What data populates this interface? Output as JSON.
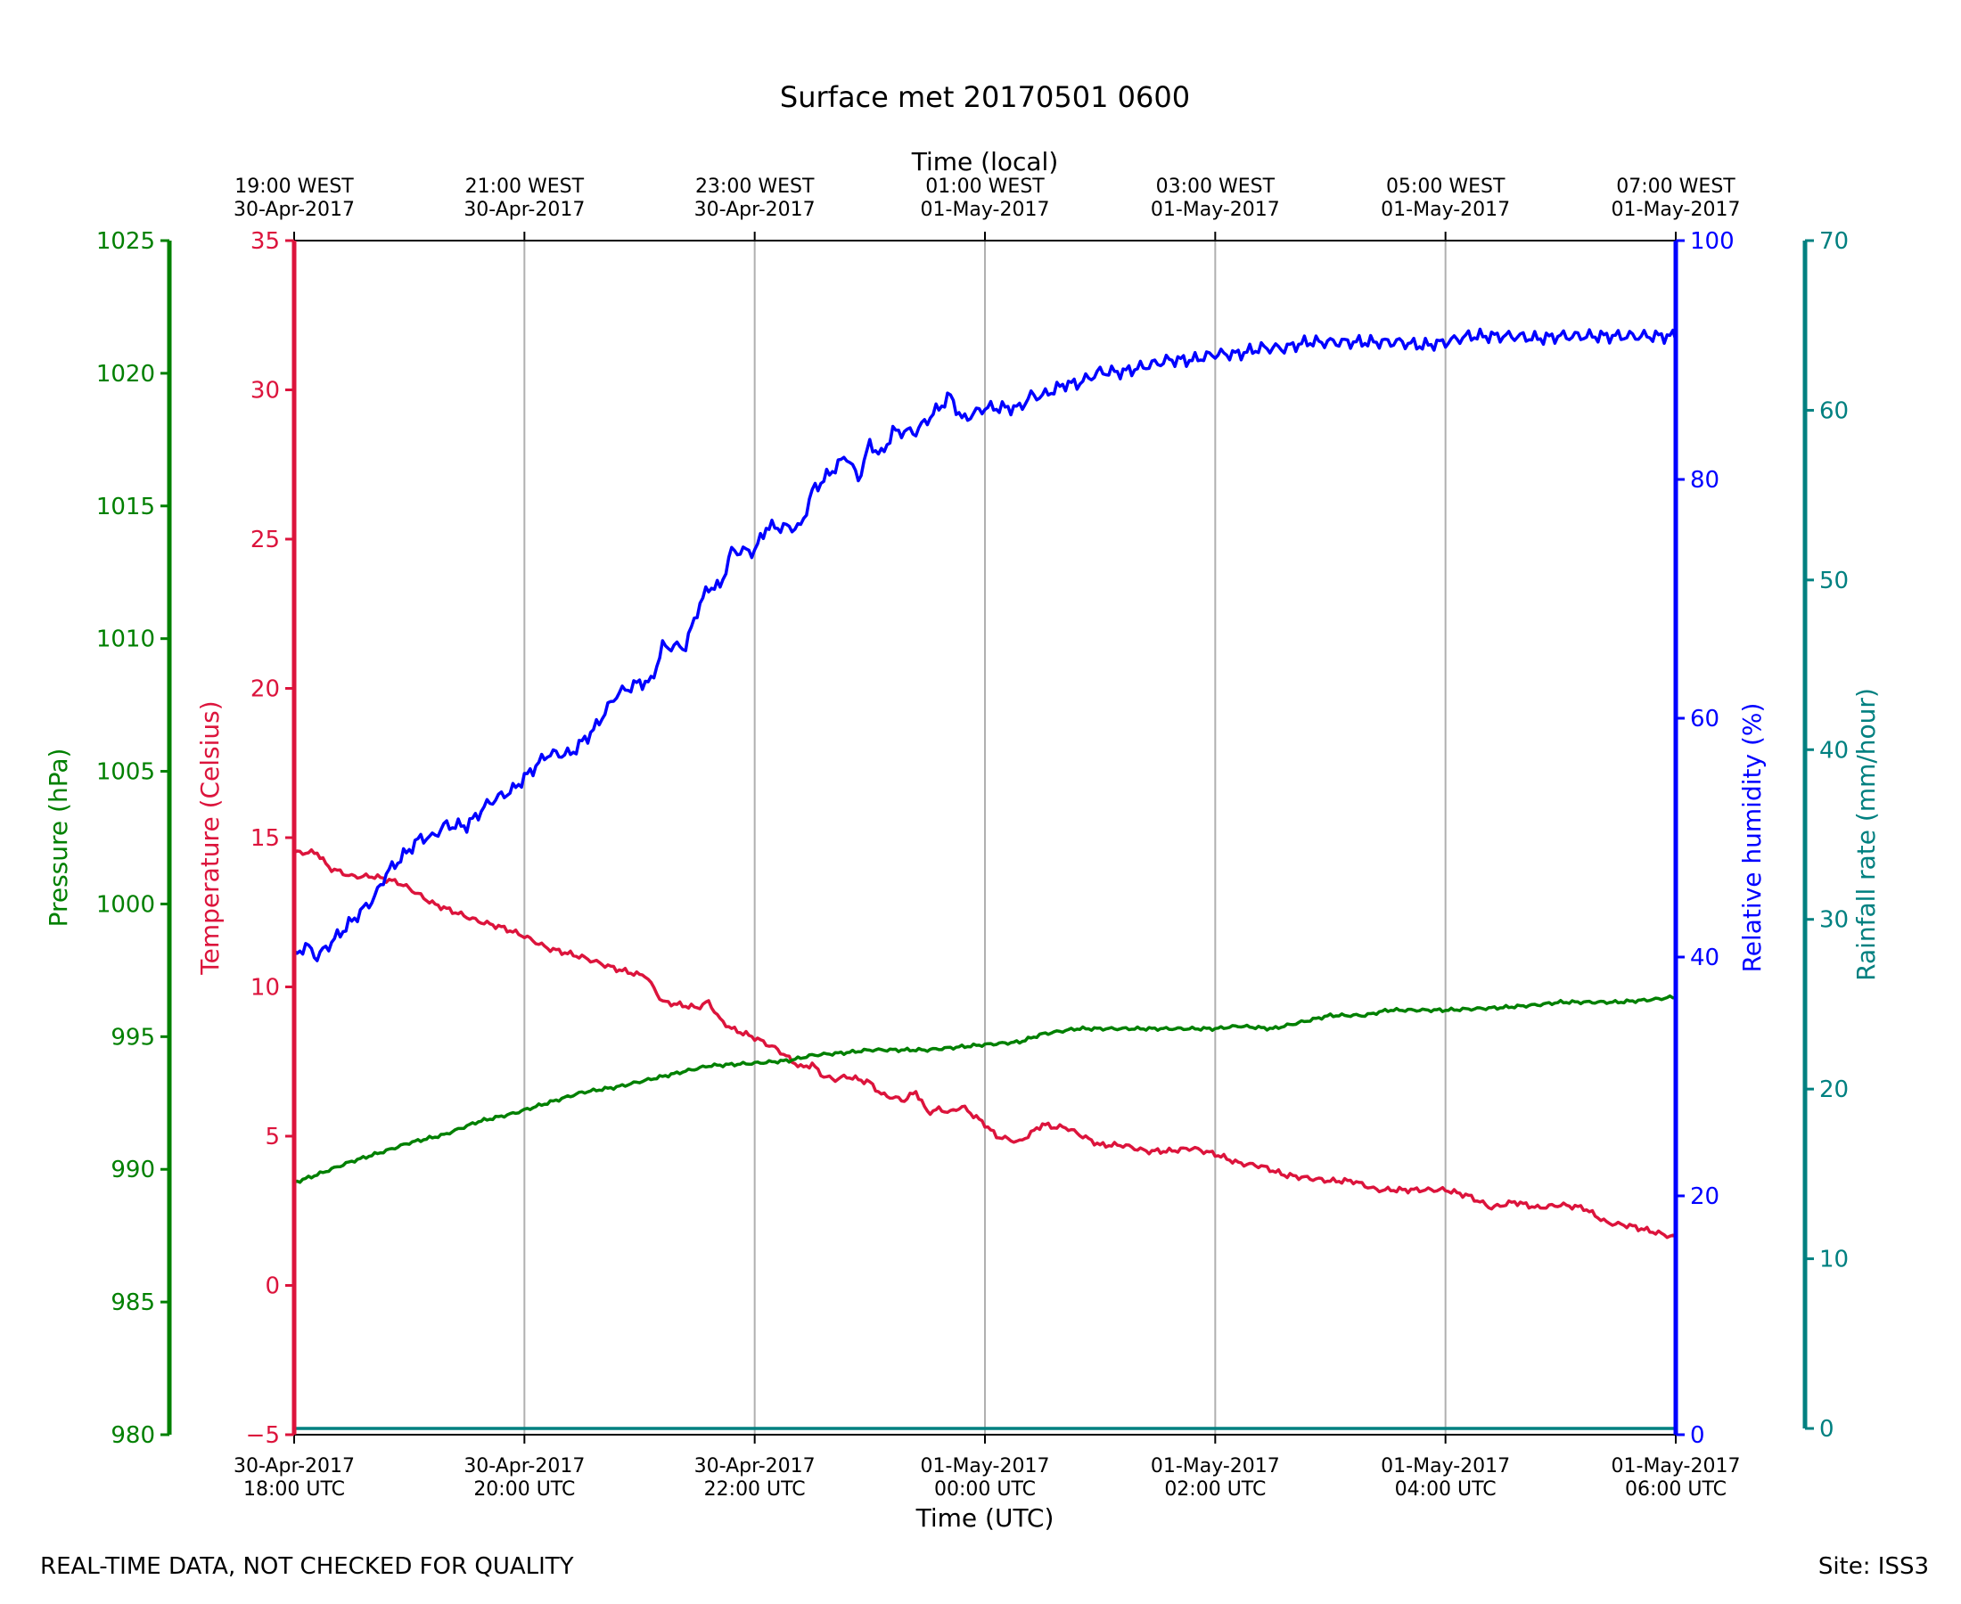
{
  "chart_data": {
    "type": "line",
    "title": "Surface met 20170501 0600",
    "x_bottom": {
      "label": "Time (UTC)",
      "range": [
        "2017-04-30T18:00Z",
        "2017-05-01T06:00Z"
      ],
      "ticks": [
        {
          "line1": "30-Apr-2017",
          "line2": "18:00 UTC"
        },
        {
          "line1": "30-Apr-2017",
          "line2": "20:00 UTC"
        },
        {
          "line1": "30-Apr-2017",
          "line2": "22:00 UTC"
        },
        {
          "line1": "01-May-2017",
          "line2": "00:00 UTC"
        },
        {
          "line1": "01-May-2017",
          "line2": "02:00 UTC"
        },
        {
          "line1": "01-May-2017",
          "line2": "04:00 UTC"
        },
        {
          "line1": "01-May-2017",
          "line2": "06:00 UTC"
        }
      ]
    },
    "x_top": {
      "label": "Time (local)",
      "ticks": [
        {
          "line1": "19:00 WEST",
          "line2": "30-Apr-2017"
        },
        {
          "line1": "21:00 WEST",
          "line2": "30-Apr-2017"
        },
        {
          "line1": "23:00 WEST",
          "line2": "30-Apr-2017"
        },
        {
          "line1": "01:00 WEST",
          "line2": "01-May-2017"
        },
        {
          "line1": "03:00 WEST",
          "line2": "01-May-2017"
        },
        {
          "line1": "05:00 WEST",
          "line2": "01-May-2017"
        },
        {
          "line1": "07:00 WEST",
          "line2": "01-May-2017"
        }
      ]
    },
    "grid": "vertical",
    "axes": {
      "pressure": {
        "label": "Pressure (hPa)",
        "color": "#008000",
        "range": [
          980,
          1025
        ],
        "ticks": [
          "980",
          "985",
          "990",
          "995",
          "1000",
          "1005",
          "1010",
          "1015",
          "1020",
          "1025"
        ]
      },
      "temperature": {
        "label": "Temperature (Celsius)",
        "color": "#dc143c",
        "range": [
          -5,
          35
        ],
        "ticks": [
          "−5",
          "0",
          "5",
          "10",
          "15",
          "20",
          "25",
          "30",
          "35"
        ]
      },
      "humidity": {
        "label": "Relative humidity (%)",
        "color": "#0000ff",
        "range": [
          0,
          100
        ],
        "ticks": [
          "0",
          "20",
          "40",
          "60",
          "80",
          "100"
        ]
      },
      "rainfall": {
        "label": "Rainfall rate (mm/hour)",
        "color": "#008080",
        "range": [
          0,
          70
        ],
        "ticks": [
          "0",
          "10",
          "20",
          "30",
          "40",
          "50",
          "60",
          "70"
        ]
      }
    },
    "series": [
      {
        "axis": "temperature",
        "color": "#dc143c",
        "hours": [
          0,
          0.1,
          0.2,
          0.3,
          0.5,
          0.7,
          0.9,
          1.0,
          1.2,
          1.4,
          1.6,
          1.8,
          2.0,
          2.2,
          2.5,
          2.8,
          3.0,
          3.05,
          3.2,
          3.5,
          3.6,
          3.7,
          3.8,
          4.0,
          4.2,
          4.3,
          4.4,
          4.5,
          4.6,
          4.7,
          4.8,
          4.9,
          5.0,
          5.1,
          5.3,
          5.4,
          5.5,
          5.6,
          5.7,
          5.8,
          6.0,
          6.1,
          6.3,
          6.5,
          6.6,
          6.7,
          6.9,
          7.0,
          7.2,
          7.4,
          7.6,
          7.8,
          8.0,
          8.2,
          8.4,
          8.6,
          8.8,
          9.0,
          9.2,
          9.4,
          9.6,
          9.8,
          10.0,
          10.2,
          10.4,
          10.6,
          10.8,
          11.0,
          11.2,
          11.4,
          11.6,
          11.8,
          12.0
        ],
        "values": [
          14.5,
          14.5,
          14.5,
          14.0,
          13.7,
          13.7,
          13.5,
          13.3,
          12.8,
          12.5,
          12.2,
          12.0,
          11.7,
          11.3,
          11.0,
          10.6,
          10.4,
          10.4,
          9.5,
          9.3,
          9.5,
          8.9,
          8.6,
          8.3,
          7.9,
          7.6,
          7.3,
          7.4,
          7.0,
          6.9,
          7.0,
          6.9,
          6.8,
          6.4,
          6.2,
          6.5,
          5.8,
          5.9,
          5.8,
          6.0,
          5.4,
          5.0,
          4.8,
          5.4,
          5.3,
          5.3,
          4.9,
          4.7,
          4.7,
          4.5,
          4.5,
          4.6,
          4.4,
          4.1,
          4.0,
          3.7,
          3.6,
          3.5,
          3.5,
          3.2,
          3.2,
          3.2,
          3.2,
          3.0,
          2.6,
          2.8,
          2.6,
          2.7,
          2.6,
          2.1,
          2.0,
          1.8,
          1.6
        ]
      },
      {
        "axis": "humidity",
        "color": "#0000ff",
        "hours": [
          0,
          0.1,
          0.2,
          0.3,
          0.4,
          0.5,
          0.6,
          0.7,
          0.8,
          0.9,
          1.0,
          1.1,
          1.2,
          1.3,
          1.5,
          1.7,
          1.9,
          2.0,
          2.2,
          2.4,
          2.6,
          2.8,
          3.0,
          3.1,
          3.2,
          3.4,
          3.5,
          3.6,
          3.7,
          3.8,
          3.9,
          4.0,
          4.1,
          4.2,
          4.3,
          4.4,
          4.5,
          4.6,
          4.7,
          4.8,
          4.9,
          5.0,
          5.1,
          5.2,
          5.3,
          5.4,
          5.5,
          5.6,
          5.7,
          5.8,
          6.0,
          6.2,
          6.3,
          6.4,
          6.5,
          6.6,
          6.7,
          6.8,
          7.0,
          7.2,
          7.4,
          7.6,
          7.8,
          8.0,
          8.2,
          8.4,
          8.6,
          8.8,
          9.0,
          9.2,
          9.4,
          9.6,
          9.8,
          10.0,
          10.2,
          10.4,
          10.6,
          10.8,
          11.0,
          11.2,
          11.4,
          11.6,
          11.8,
          12.0
        ],
        "values": [
          40,
          41,
          40,
          41,
          42,
          43,
          44,
          45,
          47,
          48,
          49,
          50,
          50,
          51,
          51,
          53,
          54,
          55,
          57,
          57,
          59,
          62,
          63,
          63,
          66,
          66,
          69,
          71,
          71,
          74,
          74,
          74,
          76,
          76,
          76,
          76,
          79,
          80,
          81,
          82,
          80,
          83,
          82,
          84,
          84,
          84,
          85,
          86,
          87,
          85,
          86,
          86,
          86,
          87,
          87,
          87.5,
          88,
          88,
          89,
          89,
          89.5,
          90,
          90,
          90.5,
          90.5,
          91,
          91,
          91.5,
          91.5,
          91.5,
          91.5,
          91.5,
          91.2,
          91.5,
          92,
          92,
          92,
          91.8,
          92,
          92,
          92,
          92,
          92,
          92
        ]
      },
      {
        "axis": "pressure",
        "color": "#008000",
        "hours": [
          0,
          0.2,
          0.5,
          0.8,
          1.0,
          1.3,
          1.6,
          1.9,
          2.2,
          2.5,
          2.8,
          3.0,
          3.3,
          3.6,
          4.0,
          4.3,
          4.5,
          4.8,
          5.0,
          5.5,
          6.0,
          6.3,
          6.5,
          6.8,
          7.0,
          7.5,
          8.0,
          8.2,
          8.5,
          9.0,
          9.3,
          9.5,
          10.0,
          10.5,
          10.8,
          11.0,
          11.5,
          11.8,
          12.0
        ],
        "values": [
          989.5,
          989.8,
          990.3,
          990.7,
          991.0,
          991.3,
          991.8,
          992.1,
          992.5,
          992.9,
          993.1,
          993.3,
          993.6,
          993.9,
          994.0,
          994.1,
          994.3,
          994.4,
          994.5,
          994.5,
          994.7,
          994.8,
          995.1,
          995.3,
          995.3,
          995.3,
          995.3,
          995.4,
          995.3,
          995.8,
          995.8,
          996.0,
          996.0,
          996.1,
          996.2,
          996.3,
          996.3,
          996.4,
          996.5
        ]
      },
      {
        "axis": "rainfall",
        "color": "#008080",
        "hours": [
          0,
          12
        ],
        "values": [
          0,
          0
        ]
      }
    ]
  },
  "footer": {
    "left": "REAL-TIME DATA, NOT CHECKED FOR QUALITY",
    "right": "Site: ISS3"
  }
}
